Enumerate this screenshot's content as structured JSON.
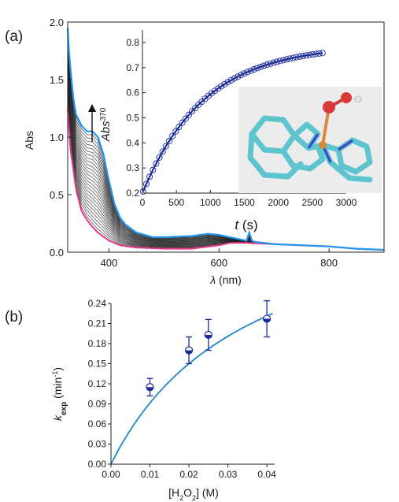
{
  "panels": {
    "a_label": "(a)",
    "b_label": "(b)"
  },
  "chart_data": [
    {
      "type": "line",
      "panel": "(a)",
      "xlabel_symbol": "λ",
      "xlabel_unit": "(nm)",
      "ylabel": "Abs",
      "xlim": [
        325,
        900
      ],
      "ylim": [
        0,
        2.0
      ],
      "x_ticks": [
        400,
        600,
        800
      ],
      "y_ticks": [
        "0.0",
        "0.5",
        "1.0",
        "1.5",
        "2.0"
      ],
      "colors": {
        "initial": "#e8388a",
        "final": "#2196f3",
        "intermediate": "#222222"
      },
      "series": [
        {
          "role": "initial",
          "x": [
            325,
            330,
            340,
            350,
            360,
            370,
            380,
            400,
            420,
            450,
            500,
            550,
            600,
            620,
            650,
            700,
            750,
            800,
            850,
            900
          ],
          "values": [
            1.25,
            0.9,
            0.55,
            0.36,
            0.28,
            0.22,
            0.17,
            0.1,
            0.06,
            0.04,
            0.03,
            0.03,
            0.06,
            0.08,
            0.08,
            0.07,
            0.06,
            0.05,
            0.03,
            0.02
          ]
        },
        {
          "role": "final",
          "x": [
            325,
            328,
            335,
            340,
            350,
            360,
            370,
            380,
            390,
            400,
            410,
            420,
            430,
            450,
            480,
            500,
            550,
            580,
            600,
            620,
            650,
            655,
            660,
            665,
            700,
            750,
            800,
            850,
            900
          ],
          "values": [
            1.95,
            1.7,
            1.35,
            1.2,
            1.1,
            1.05,
            1.05,
            1.0,
            0.85,
            0.62,
            0.42,
            0.3,
            0.24,
            0.17,
            0.13,
            0.13,
            0.14,
            0.16,
            0.15,
            0.13,
            0.1,
            0.17,
            0.1,
            0.09,
            0.07,
            0.06,
            0.05,
            0.03,
            0.02
          ]
        }
      ],
      "intermediate_traces": 26,
      "annotation": "growth-arrow"
    },
    {
      "type": "scatter",
      "panel": "(a) inset",
      "xlabel": "t",
      "xlabel_unit": "(s)",
      "ylabel": "Abs",
      "ylabel_superscript": "370",
      "xlim": [
        0,
        3000
      ],
      "ylim": [
        0.2,
        0.85
      ],
      "x_ticks": [
        "0",
        "500",
        "1000",
        "1500",
        "2000",
        "2500",
        "3000"
      ],
      "y_ticks": [
        "0.2",
        "0.3",
        "0.4",
        "0.5",
        "0.6",
        "0.7",
        "0.8"
      ],
      "fit": {
        "A_inf": 0.79,
        "A0": 0.2,
        "k": 0.0011
      },
      "marker_count": 56,
      "t_start": 10,
      "t_end": 2650,
      "colors": {
        "fit": "#1a2b99",
        "markers": "#1a2b99"
      }
    },
    {
      "type": "scatter",
      "panel": "(b)",
      "xlabel": "[H2O2] (M)",
      "ylabel": "k_exp (min^-1)",
      "xlim": [
        0,
        0.042
      ],
      "ylim": [
        0,
        0.24
      ],
      "x_ticks": [
        "0.00",
        "0.01",
        "0.02",
        "0.03",
        "0.04"
      ],
      "y_ticks": [
        "0.00",
        "0.03",
        "0.06",
        "0.09",
        "0.12",
        "0.15",
        "0.18",
        "0.21",
        "0.24"
      ],
      "x": [
        0.01,
        0.02,
        0.025,
        0.04
      ],
      "values": [
        0.115,
        0.17,
        0.193,
        0.217
      ],
      "errors": [
        0.013,
        0.02,
        0.023,
        0.027
      ],
      "fit": {
        "kmax": 0.42,
        "K": 0.036
      },
      "colors": {
        "fit": "#1e88c6",
        "markers": "#1a2b99"
      }
    }
  ],
  "texts": {
    "a_xlabel_sym": "λ",
    "a_xlabel_unit": " (nm)",
    "a_ylabel": "Abs",
    "inset_xlabel_t": "t",
    "inset_xlabel_unit": " (s)",
    "inset_ylabel_abs": "Abs",
    "inset_ylabel_sup": "370",
    "b_ylabel_k": "k",
    "b_ylabel_sub": "exp",
    "b_ylabel_unit": " (min",
    "b_ylabel_sup": "-1",
    "b_ylabel_close": ")",
    "b_xlabel_open": "[H",
    "b_xlabel_sub1": "2",
    "b_xlabel_mid": "O",
    "b_xlabel_sub2": "2",
    "b_xlabel_close": "] (M)"
  },
  "molecule": {
    "colors": {
      "bond": "#5ec5cf",
      "metal": "#d98a3a",
      "nitrogen": "#4040c8",
      "oxygen": "#d83a3a",
      "hydrogen": "#e4e4e4",
      "background": "#ececec"
    }
  }
}
